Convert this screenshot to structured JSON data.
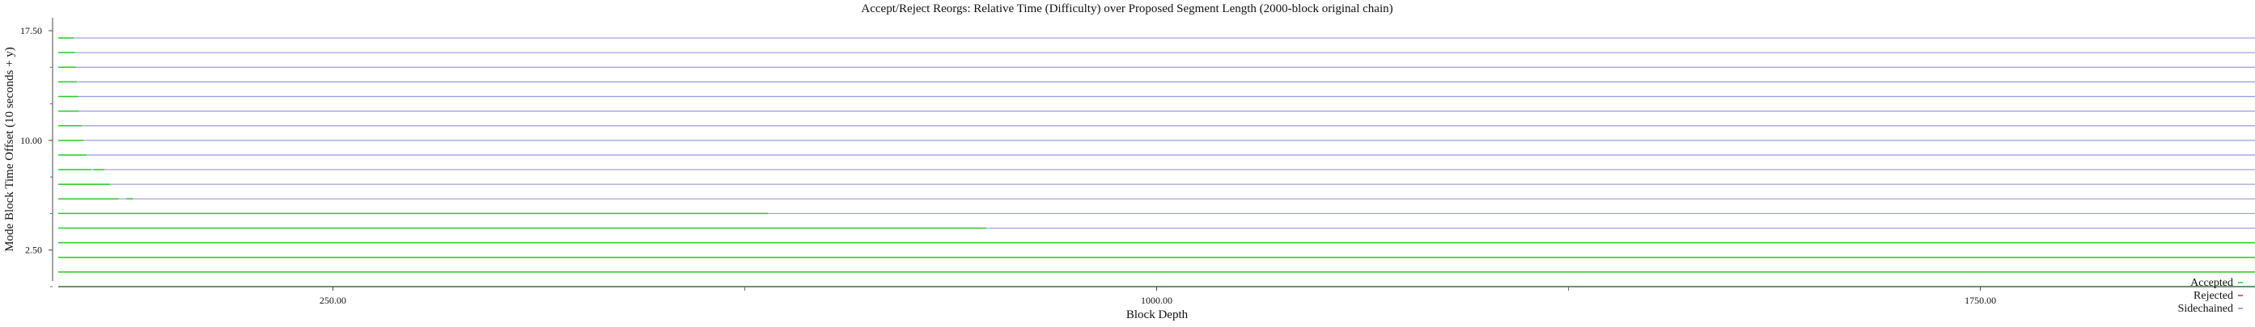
{
  "chart_data": {
    "type": "line",
    "title": "Accept/Reject Reorgs: Relative Time (Difficulty) over Proposed Segment Length (2000-block original chain)",
    "xlabel": "Block Depth",
    "ylabel": "Mode Block Time Offset (10 seconds + y)",
    "xlim": [
      0,
      2000
    ],
    "ylim": [
      0,
      18
    ],
    "x_ticks": [
      250,
      1000,
      1750
    ],
    "x_tick_labels": [
      "250.00",
      "1000.00",
      "1750.00"
    ],
    "y_ticks": [
      2.5,
      10,
      17.5
    ],
    "y_tick_labels": [
      "2.50",
      "10.00",
      "17.50"
    ],
    "grid": false,
    "legend_position": "bottom-right",
    "legend": [
      {
        "label": "Accepted",
        "color": "#22cc22"
      },
      {
        "label": "Rejected",
        "color": "#cc3333"
      },
      {
        "label": "Sidechained",
        "color": "#8888dd"
      }
    ],
    "colors": {
      "accepted": "#22cc22",
      "rejected": "#cc3333",
      "sidechained": "#9999dd"
    },
    "series": [
      {
        "y": 0,
        "accepted_to": 2000,
        "sidechained_from": 2000
      },
      {
        "y": 1,
        "accepted_to": 2000,
        "sidechained_from": 2000
      },
      {
        "y": 2,
        "accepted_to": 2000,
        "sidechained_from": 2000
      },
      {
        "y": 3,
        "accepted_to": 2000,
        "sidechained_from": 2000
      },
      {
        "y": 4,
        "accepted_to": 845,
        "sidechained_from": 845
      },
      {
        "y": 5,
        "accepted_to": 646,
        "sidechained_from": 646
      },
      {
        "y": 6,
        "accepted_to": 55,
        "sidechained_from": 55,
        "extra_accepted": [
          [
            62,
            68
          ]
        ]
      },
      {
        "y": 7,
        "accepted_to": 47,
        "sidechained_from": 47
      },
      {
        "y": 8,
        "accepted_to": 30,
        "sidechained_from": 30,
        "extra_accepted": [
          [
            32,
            42
          ]
        ]
      },
      {
        "y": 9,
        "accepted_to": 26,
        "sidechained_from": 26
      },
      {
        "y": 10,
        "accepted_to": 23,
        "sidechained_from": 23
      },
      {
        "y": 11,
        "accepted_to": 21,
        "sidechained_from": 21
      },
      {
        "y": 12,
        "accepted_to": 19,
        "sidechained_from": 19
      },
      {
        "y": 13,
        "accepted_to": 18,
        "sidechained_from": 18
      },
      {
        "y": 14,
        "accepted_to": 17,
        "sidechained_from": 17
      },
      {
        "y": 15,
        "accepted_to": 16,
        "sidechained_from": 16
      },
      {
        "y": 16,
        "accepted_to": 15,
        "sidechained_from": 15
      },
      {
        "y": 17,
        "accepted_to": 14,
        "sidechained_from": 14
      }
    ]
  }
}
